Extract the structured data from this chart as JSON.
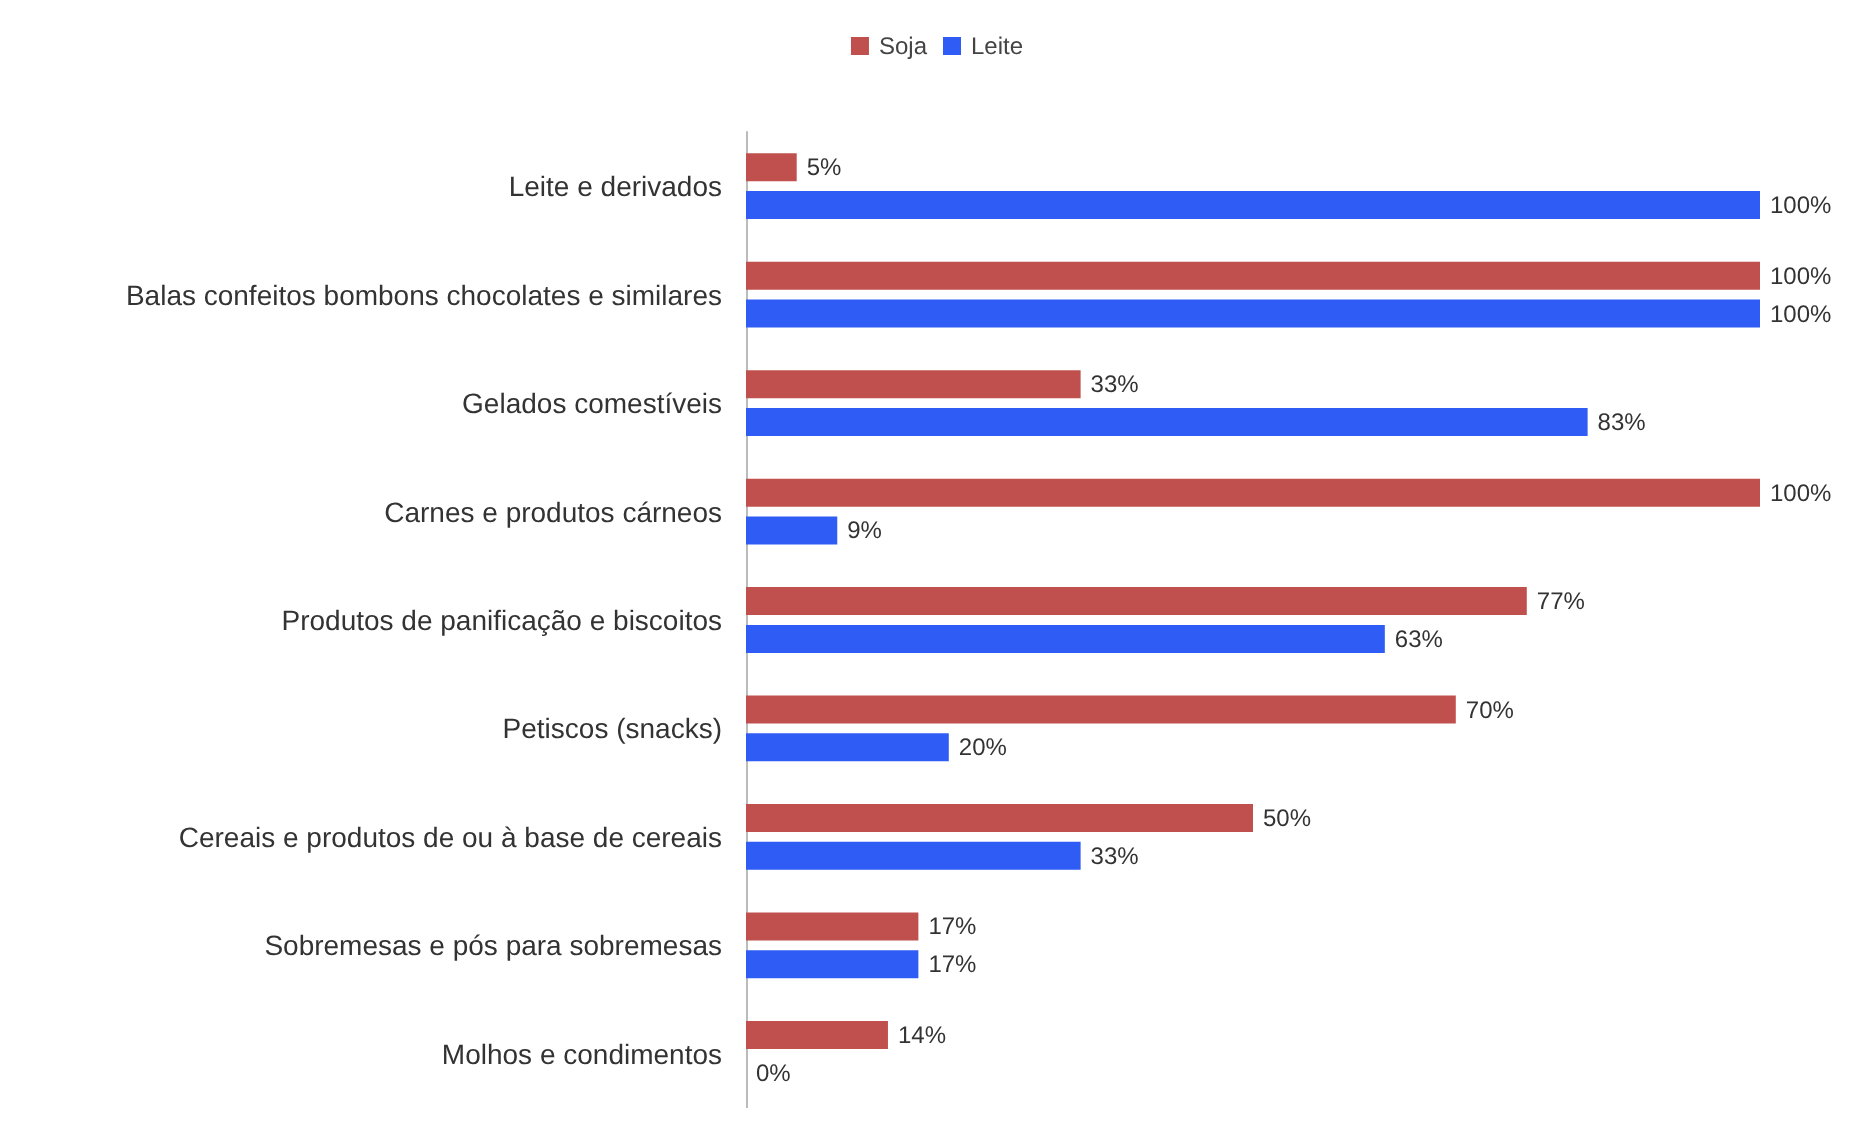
{
  "chart_data": {
    "type": "bar",
    "orientation": "horizontal",
    "xlim": [
      0,
      100
    ],
    "legend": "top",
    "grid": false,
    "categories": [
      "Leite e derivados",
      "Balas confeitos bombons chocolates e similares",
      "Gelados comestíveis",
      "Carnes e produtos cárneos",
      "Produtos de panificação e biscoitos",
      "Petiscos (snacks)",
      "Cereais e produtos de ou à base de cereais",
      "Sobremesas e pós para sobremesas",
      "Molhos e condimentos"
    ],
    "series": [
      {
        "name": "Soja",
        "color": "#c0504d",
        "values": [
          5,
          100,
          33,
          100,
          77,
          70,
          50,
          17,
          14
        ],
        "value_labels": [
          "5%",
          "100%",
          "33%",
          "100%",
          "77%",
          "70%",
          "50%",
          "17%",
          "14%"
        ]
      },
      {
        "name": "Leite",
        "color": "#2f5cf5",
        "values": [
          100,
          100,
          83,
          9,
          63,
          20,
          33,
          17,
          0
        ],
        "value_labels": [
          "100%",
          "100%",
          "83%",
          "9%",
          "63%",
          "20%",
          "33%",
          "17%",
          "0%"
        ]
      }
    ]
  }
}
